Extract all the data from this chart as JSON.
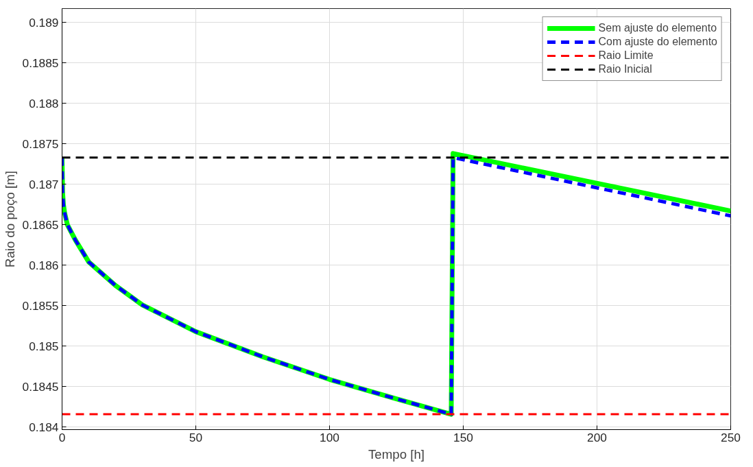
{
  "chart_data": {
    "type": "line",
    "xlabel": "Tempo [h]",
    "ylabel": "Raio do poço [m]",
    "xlim": [
      0,
      250
    ],
    "ylim": [
      0.18397,
      0.18917
    ],
    "xticks": [
      0,
      50,
      100,
      150,
      200,
      250
    ],
    "yticks": [
      0.184,
      0.1845,
      0.185,
      0.1855,
      0.186,
      0.1865,
      0.187,
      0.1875,
      0.188,
      0.1885,
      0.189
    ],
    "grid": true,
    "legend": "top right",
    "marker": "none",
    "series": [
      {
        "name": "Sem ajuste do elemento",
        "color": "#00ff00",
        "line_style": "solid",
        "x": [
          0,
          0.2,
          0.5,
          1,
          2,
          5,
          10,
          20,
          30,
          50,
          75,
          100,
          125,
          145.5,
          146.2,
          250
        ],
        "values": [
          0.18733,
          0.1869,
          0.18675,
          0.18664,
          0.1865,
          0.18631,
          0.18604,
          0.18575,
          0.18551,
          0.18518,
          0.18487,
          0.18459,
          0.18435,
          0.18416,
          0.18738,
          0.18667
        ]
      },
      {
        "name": "Com ajuste do elemento",
        "color": "#0000ff",
        "line_style": "dashed",
        "x": [
          0,
          0.2,
          0.5,
          1,
          2,
          5,
          10,
          20,
          30,
          50,
          75,
          100,
          125,
          145.5,
          146.2,
          250
        ],
        "values": [
          0.18733,
          0.1869,
          0.18675,
          0.18664,
          0.1865,
          0.18631,
          0.18604,
          0.18575,
          0.18551,
          0.18518,
          0.18487,
          0.18459,
          0.18435,
          0.18416,
          0.18733,
          0.18661
        ]
      },
      {
        "name": "Raio Limite",
        "color": "#ff0000",
        "line_style": "dashed",
        "x": [
          0,
          250
        ],
        "values": [
          0.18416,
          0.18416
        ]
      },
      {
        "name": "Raio Inicial",
        "color": "#000000",
        "line_style": "dashed",
        "x": [
          0,
          250
        ],
        "values": [
          0.18733,
          0.18733
        ]
      }
    ]
  }
}
